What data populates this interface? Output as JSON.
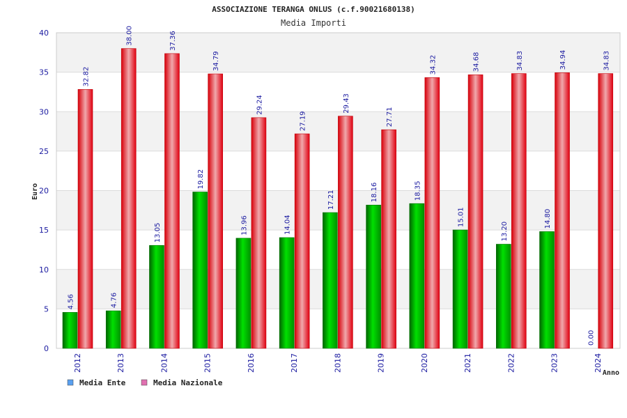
{
  "chart_data": {
    "type": "bar",
    "title": "ASSOCIAZIONE TERANGA ONLUS (c.f.90021680138)",
    "subtitle": "Media Importi",
    "xlabel": "Anno",
    "ylabel": "Euro",
    "ylim": [
      0,
      40
    ],
    "yticks": [
      0,
      5,
      10,
      15,
      20,
      25,
      30,
      35,
      40
    ],
    "grid": true,
    "legend_placement": "bottom-left",
    "categories": [
      "2012",
      "2013",
      "2014",
      "2015",
      "2016",
      "2017",
      "2018",
      "2019",
      "2020",
      "2021",
      "2022",
      "2023",
      "2024"
    ],
    "series": [
      {
        "name": "Media Ente",
        "color": "#00b400",
        "legend_color": "#5aa0f0",
        "values": [
          4.56,
          4.76,
          13.05,
          19.82,
          13.96,
          14.04,
          17.21,
          18.16,
          18.35,
          15.01,
          13.2,
          14.8,
          0.0
        ],
        "labels": [
          "4.56",
          "4.76",
          "13.05",
          "19.82",
          "13.96",
          "14.04",
          "17.21",
          "18.16",
          "18.35",
          "15.01",
          "13.20",
          "14.80",
          "0.00"
        ]
      },
      {
        "name": "Media Nazionale",
        "color": "#e8000c",
        "legend_color": "#e070b0",
        "values": [
          32.82,
          38.0,
          37.36,
          34.79,
          29.24,
          27.19,
          29.43,
          27.71,
          34.32,
          34.68,
          34.83,
          34.94,
          34.83
        ],
        "labels": [
          "32.82",
          "38.00",
          "37.36",
          "34.79",
          "29.24",
          "27.19",
          "29.43",
          "27.71",
          "34.32",
          "34.68",
          "34.83",
          "34.94",
          "34.83"
        ]
      }
    ]
  }
}
